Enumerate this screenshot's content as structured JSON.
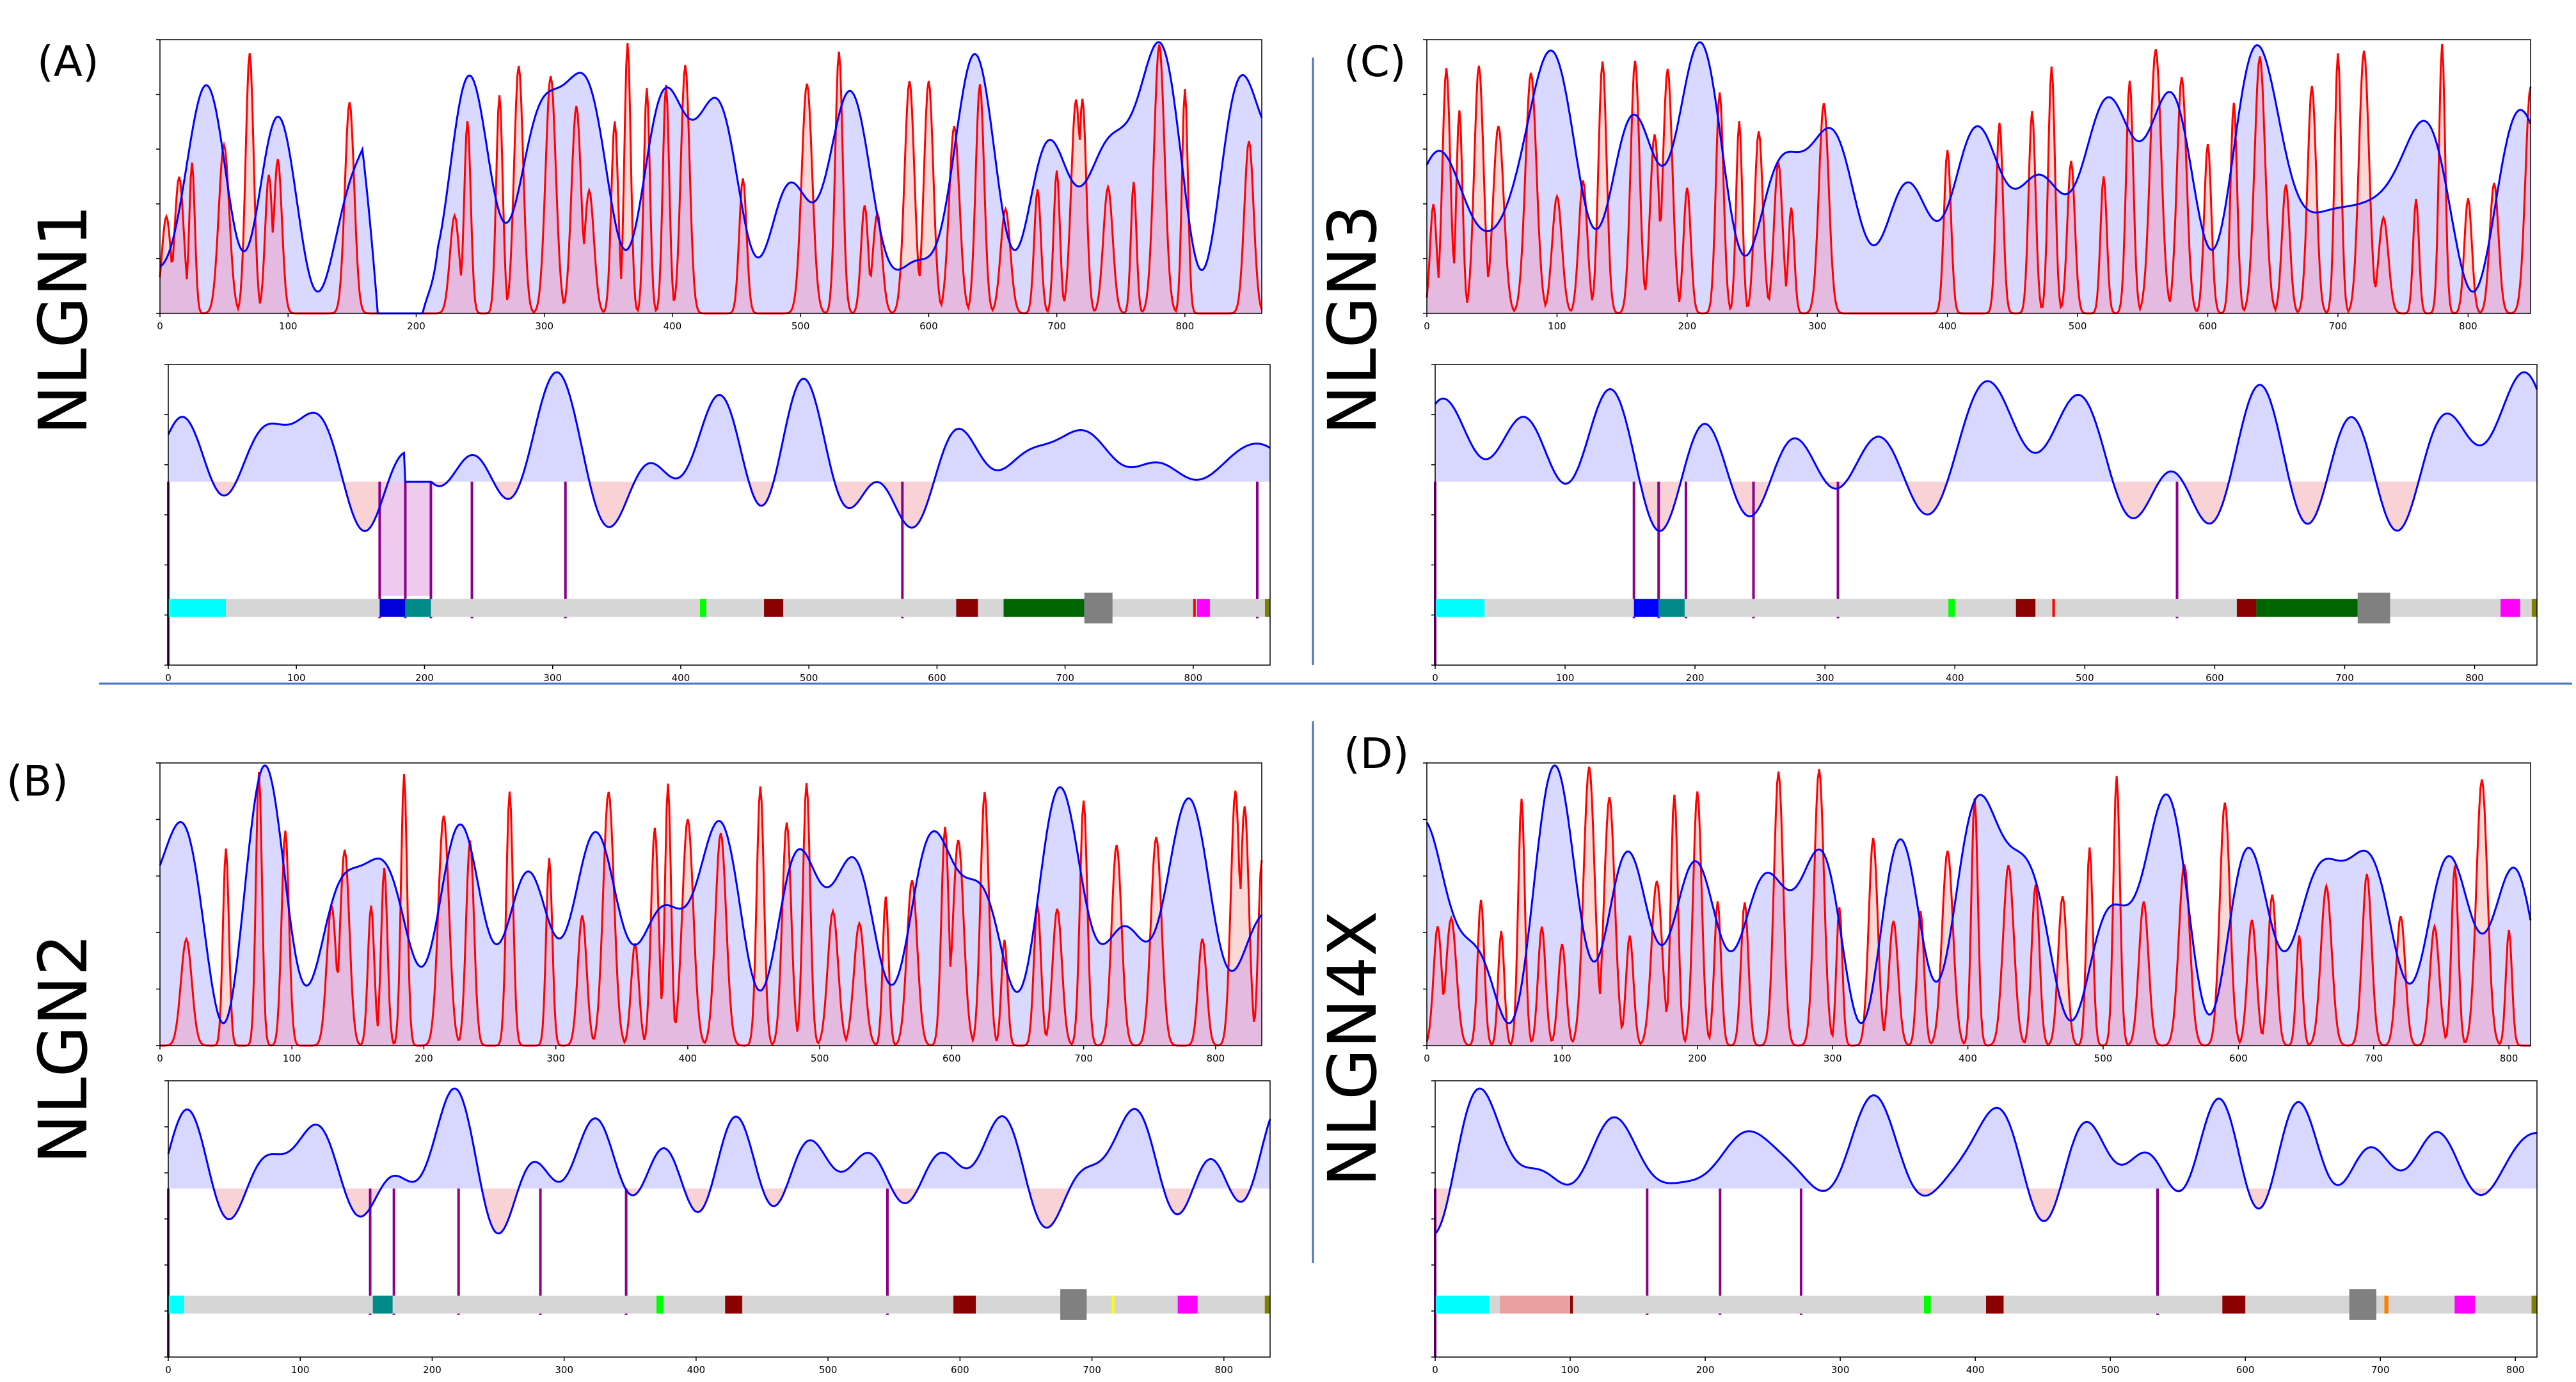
{
  "figure": {
    "separator_color": "#4472c4",
    "colors": {
      "blue_line": "#0000ff",
      "blue_fill": "#d7d7ff",
      "red_line": "#ff0000",
      "red_fill": "#f7c8c8",
      "overlap_fill": "#e2b6e2",
      "marker": "#8b008b",
      "track": "#d6d6d6",
      "frame": "#000000"
    }
  },
  "chart_data": [
    {
      "panel": "(A)",
      "protein": "NLGN1",
      "type": "line",
      "x_max": 860,
      "x_ticks": [
        0,
        100,
        200,
        300,
        400,
        500,
        600,
        700,
        800
      ],
      "series": [
        {
          "name": "blue profile",
          "color": "#0000ff"
        },
        {
          "name": "red profile",
          "color": "#ff0000"
        }
      ],
      "red_peaks": [
        5,
        15,
        25,
        50,
        70,
        85,
        92,
        148,
        230,
        240,
        265,
        280,
        305,
        325,
        335,
        355,
        365,
        380,
        395,
        410,
        455,
        505,
        530,
        550,
        560,
        585,
        600,
        620,
        640,
        660,
        685,
        700,
        715,
        720,
        740,
        760,
        780,
        800,
        850
      ],
      "gap_regions": [
        [
          170,
          205
        ]
      ],
      "lower_pos_regions": [
        [
          185,
          205
        ]
      ],
      "markers": [
        165,
        185,
        205,
        237,
        310,
        573,
        850
      ],
      "shaded_regions": [
        [
          165,
          205
        ]
      ],
      "domains": [
        {
          "start": 0,
          "end": 45,
          "color": "#00ffff"
        },
        {
          "start": 165,
          "end": 185,
          "color": "#0000dd"
        },
        {
          "start": 185,
          "end": 205,
          "color": "#008b8b"
        },
        {
          "start": 415,
          "end": 420,
          "color": "#00ff00"
        },
        {
          "start": 465,
          "end": 480,
          "color": "#8b0000"
        },
        {
          "start": 615,
          "end": 632,
          "color": "#8b0000"
        },
        {
          "start": 652,
          "end": 715,
          "color": "#006400"
        },
        {
          "start": 715,
          "end": 737,
          "color": "#808080",
          "tall": true
        },
        {
          "start": 800,
          "end": 802,
          "color": "#ff0000"
        },
        {
          "start": 803,
          "end": 813,
          "color": "#ff00ff"
        },
        {
          "start": 856,
          "end": 860,
          "color": "#808000"
        }
      ]
    },
    {
      "panel": "(B)",
      "protein": "NLGN2",
      "type": "line",
      "x_max": 835,
      "x_ticks": [
        0,
        100,
        200,
        300,
        400,
        500,
        600,
        700,
        800
      ],
      "series": [
        {
          "name": "blue profile",
          "color": "#0000ff"
        },
        {
          "name": "red profile",
          "color": "#ff0000"
        }
      ],
      "red_peaks": [
        20,
        50,
        75,
        95,
        130,
        140,
        160,
        170,
        185,
        215,
        235,
        265,
        295,
        320,
        340,
        360,
        375,
        385,
        400,
        425,
        455,
        475,
        490,
        510,
        530,
        550,
        570,
        595,
        605,
        625,
        640,
        665,
        680,
        700,
        725,
        755,
        790,
        815,
        822,
        835
      ],
      "gap_regions": [],
      "lower_pos_regions": [],
      "markers": [
        153,
        171,
        220,
        282,
        347,
        545
      ],
      "shaded_regions": [],
      "domains": [
        {
          "start": 0,
          "end": 12,
          "color": "#00ffff"
        },
        {
          "start": 155,
          "end": 170,
          "color": "#008b8b"
        },
        {
          "start": 370,
          "end": 375,
          "color": "#00ff00"
        },
        {
          "start": 422,
          "end": 435,
          "color": "#8b0000"
        },
        {
          "start": 595,
          "end": 612,
          "color": "#8b0000"
        },
        {
          "start": 676,
          "end": 696,
          "color": "#808080",
          "tall": true
        },
        {
          "start": 715,
          "end": 717,
          "color": "#ffff00"
        },
        {
          "start": 765,
          "end": 780,
          "color": "#ff00ff"
        },
        {
          "start": 831,
          "end": 835,
          "color": "#808000"
        }
      ]
    },
    {
      "panel": "(C)",
      "protein": "NLGN3",
      "type": "line",
      "x_max": 848,
      "x_ticks": [
        0,
        100,
        200,
        300,
        400,
        500,
        600,
        700,
        800
      ],
      "series": [
        {
          "name": "blue profile",
          "color": "#0000ff"
        },
        {
          "name": "red profile",
          "color": "#ff0000"
        }
      ],
      "red_peaks": [
        5,
        15,
        25,
        40,
        55,
        80,
        100,
        120,
        135,
        160,
        175,
        185,
        200,
        225,
        240,
        255,
        270,
        280,
        305,
        400,
        440,
        465,
        480,
        495,
        520,
        540,
        560,
        580,
        600,
        620,
        640,
        660,
        680,
        700,
        720,
        735,
        760,
        780,
        800,
        820,
        848
      ],
      "gap_regions": [],
      "lower_pos_regions": [],
      "markers": [
        153,
        172,
        193,
        245,
        310,
        571
      ],
      "shaded_regions": [],
      "domains": [
        {
          "start": 0,
          "end": 38,
          "color": "#00ffff"
        },
        {
          "start": 153,
          "end": 172,
          "color": "#0000ff"
        },
        {
          "start": 172,
          "end": 192,
          "color": "#008b8b"
        },
        {
          "start": 395,
          "end": 400,
          "color": "#00ff00"
        },
        {
          "start": 447,
          "end": 462,
          "color": "#8b0000"
        },
        {
          "start": 475,
          "end": 477,
          "color": "#ff0000"
        },
        {
          "start": 617,
          "end": 632,
          "color": "#8b0000"
        },
        {
          "start": 632,
          "end": 710,
          "color": "#006400"
        },
        {
          "start": 710,
          "end": 735,
          "color": "#808080",
          "tall": true
        },
        {
          "start": 820,
          "end": 835,
          "color": "#ff00ff"
        },
        {
          "start": 844,
          "end": 848,
          "color": "#808000"
        }
      ]
    },
    {
      "panel": "(D)",
      "protein": "NLGN4X",
      "type": "line",
      "x_max": 816,
      "x_ticks": [
        0,
        100,
        200,
        300,
        400,
        500,
        600,
        700,
        800
      ],
      "series": [
        {
          "name": "blue profile",
          "color": "#0000ff"
        },
        {
          "name": "red profile",
          "color": "#ff0000"
        }
      ],
      "red_peaks": [
        8,
        18,
        40,
        55,
        70,
        85,
        100,
        120,
        135,
        150,
        170,
        183,
        200,
        215,
        235,
        260,
        290,
        305,
        330,
        345,
        365,
        385,
        405,
        430,
        450,
        470,
        490,
        510,
        530,
        560,
        590,
        610,
        625,
        645,
        665,
        695,
        720,
        745,
        760,
        780,
        800
      ],
      "gap_regions": [],
      "lower_pos_regions": [],
      "markers": [
        157,
        211,
        271,
        535
      ],
      "shaded_regions": [],
      "domains": [
        {
          "start": 0,
          "end": 40,
          "color": "#00ffff"
        },
        {
          "start": 48,
          "end": 100,
          "color": "#e8a0a0"
        },
        {
          "start": 100,
          "end": 102,
          "color": "#8b0000"
        },
        {
          "start": 362,
          "end": 367,
          "color": "#00ff00"
        },
        {
          "start": 408,
          "end": 421,
          "color": "#8b0000"
        },
        {
          "start": 583,
          "end": 600,
          "color": "#8b0000"
        },
        {
          "start": 677,
          "end": 697,
          "color": "#808080",
          "tall": true
        },
        {
          "start": 703,
          "end": 706,
          "color": "#ff8000"
        },
        {
          "start": 755,
          "end": 770,
          "color": "#ff00ff"
        },
        {
          "start": 812,
          "end": 816,
          "color": "#808000"
        }
      ]
    }
  ]
}
